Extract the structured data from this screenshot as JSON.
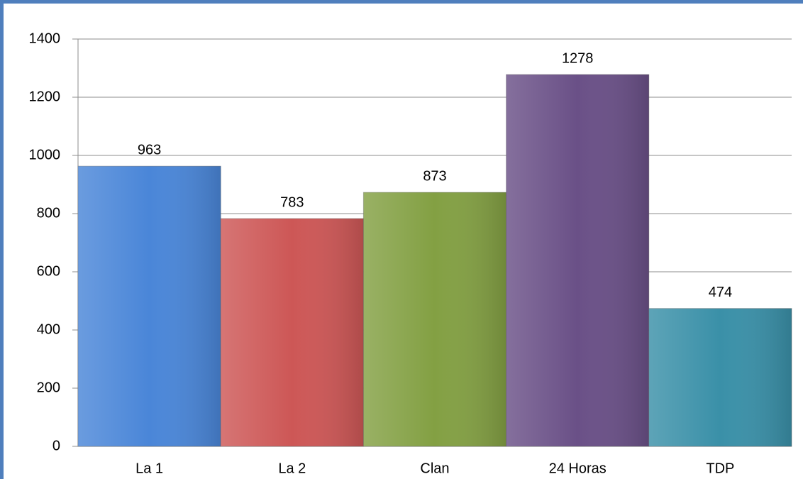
{
  "chart_data": {
    "type": "bar",
    "categories": [
      "La 1",
      "La 2",
      "Clan",
      "24 Horas",
      "TDP"
    ],
    "values": [
      963,
      783,
      873,
      1278,
      474
    ],
    "colors": [
      "#4a86d8",
      "#cd5756",
      "#83a043",
      "#6a5087",
      "#3a90a8"
    ],
    "ylim": [
      0,
      1400
    ],
    "yticks": [
      0,
      200,
      400,
      600,
      800,
      1000,
      1200,
      1400
    ],
    "grid": true
  }
}
